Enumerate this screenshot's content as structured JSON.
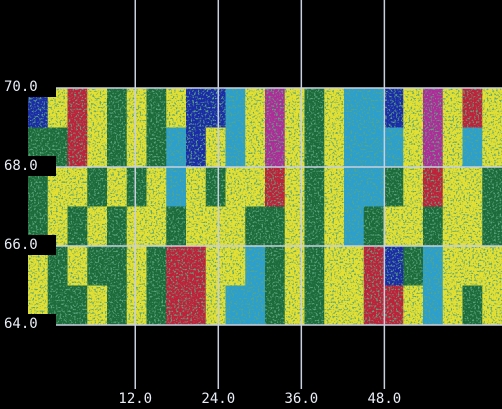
{
  "chart_data": {
    "type": "heatmap",
    "xlim": [
      -3.5,
      65
    ],
    "ylim": [
      64,
      70
    ],
    "xticks": [
      {
        "value": 12,
        "label": "12.0"
      },
      {
        "value": 24,
        "label": "24.0"
      },
      {
        "value": 36,
        "label": "36.0"
      },
      {
        "value": 48,
        "label": "48.0"
      }
    ],
    "yticks": [
      {
        "value": 64,
        "label": "64.0"
      },
      {
        "value": 66,
        "label": "66.0"
      },
      {
        "value": 68,
        "label": "68.0"
      },
      {
        "value": 70,
        "label": "70.0"
      }
    ],
    "grid": true,
    "colors": [
      "#1d6a3a",
      "#e4e032",
      "#2a9fd0",
      "#1a2aa8",
      "#b02a9a",
      "#c0203a"
    ],
    "cells": [
      [
        3,
        1,
        5,
        1,
        0,
        1,
        0,
        1,
        3,
        3,
        2,
        1,
        4,
        1,
        0,
        1,
        2,
        2,
        3,
        1,
        4,
        1,
        5,
        1
      ],
      [
        0,
        0,
        5,
        1,
        0,
        1,
        0,
        2,
        3,
        1,
        2,
        1,
        4,
        1,
        0,
        1,
        2,
        2,
        2,
        1,
        4,
        1,
        2,
        1
      ],
      [
        0,
        1,
        1,
        0,
        1,
        0,
        1,
        2,
        1,
        0,
        1,
        1,
        5,
        1,
        0,
        1,
        2,
        2,
        0,
        1,
        5,
        1,
        1,
        0
      ],
      [
        0,
        1,
        0,
        1,
        0,
        1,
        1,
        0,
        1,
        1,
        1,
        0,
        0,
        1,
        0,
        1,
        2,
        0,
        1,
        1,
        0,
        1,
        1,
        0
      ],
      [
        1,
        0,
        1,
        0,
        0,
        1,
        0,
        5,
        5,
        1,
        1,
        2,
        0,
        1,
        0,
        1,
        1,
        5,
        3,
        0,
        2,
        1,
        1,
        1
      ],
      [
        1,
        0,
        0,
        1,
        0,
        1,
        0,
        5,
        5,
        1,
        2,
        2,
        0,
        1,
        0,
        1,
        1,
        5,
        5,
        1,
        2,
        1,
        0,
        1
      ]
    ]
  }
}
